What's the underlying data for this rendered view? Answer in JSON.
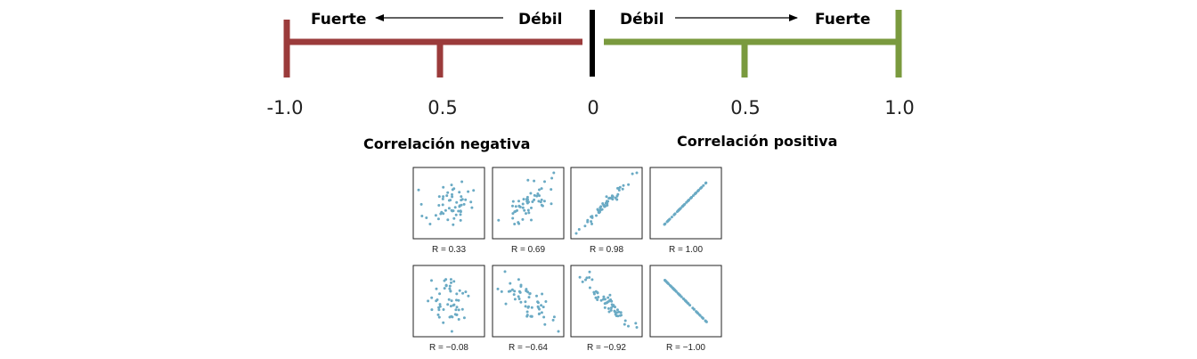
{
  "colors": {
    "negative": "#9b3b3b",
    "positive": "#7a9a3e",
    "zero": "#000000",
    "points": "#6aaac4"
  },
  "axis": {
    "tick_labels": [
      "-1.0",
      "0.5",
      "0",
      "0.5",
      "1.0"
    ]
  },
  "negative_side": {
    "strong_label": "Fuerte",
    "weak_label": "Débil",
    "title": "Correlación negativa"
  },
  "positive_side": {
    "weak_label": "Débil",
    "strong_label": "Fuerte",
    "title": "Correlación positiva"
  },
  "panels": [
    {
      "r": 0.33,
      "caption": "R = 0.33"
    },
    {
      "r": 0.69,
      "caption": "R = 0.69"
    },
    {
      "r": 0.98,
      "caption": "R = 0.98"
    },
    {
      "r": 1.0,
      "caption": "R = 1.00"
    },
    {
      "r": -0.08,
      "caption": "R = −0.08"
    },
    {
      "r": -0.64,
      "caption": "R = −0.64"
    },
    {
      "r": -0.92,
      "caption": "R = −0.92"
    },
    {
      "r": -1.0,
      "caption": "R = −1.00"
    }
  ]
}
